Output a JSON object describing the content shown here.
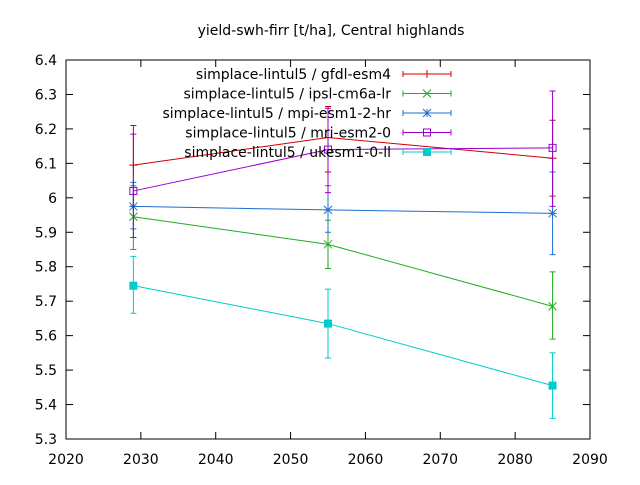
{
  "chart_data": {
    "type": "line",
    "title": "yield-swh-firr [t/ha], Central highlands",
    "xlabel": "",
    "ylabel": "",
    "xlim": [
      2020,
      2090
    ],
    "ylim": [
      5.3,
      6.4
    ],
    "x_ticks": [
      2020,
      2030,
      2040,
      2050,
      2060,
      2070,
      2080,
      2090
    ],
    "y_ticks": [
      5.3,
      5.4,
      5.5,
      5.6,
      5.7,
      5.8,
      5.9,
      6.0,
      6.1,
      6.2,
      6.3,
      6.4
    ],
    "x_tick_labels": [
      "2020",
      "2030",
      "2040",
      "2050",
      "2060",
      "2070",
      "2080",
      "2090"
    ],
    "y_tick_labels": [
      "5.3",
      "5.4",
      "5.5",
      "5.6",
      "5.7",
      "5.8",
      "5.9",
      "6",
      "6.1",
      "6.2",
      "6.3",
      "6.4"
    ],
    "grid": false,
    "legend_position": "top-right",
    "x": [
      2029,
      2055,
      2085
    ],
    "series": [
      {
        "name": "simplace-lintul5 / gfdl-esm4",
        "color": "#cc0000",
        "marker": "plus",
        "values": [
          6.095,
          6.175,
          6.115
        ],
        "err_low": [
          5.975,
          6.075,
          6.005
        ],
        "err_high": [
          6.21,
          6.265,
          6.225
        ]
      },
      {
        "name": "simplace-lintul5 / ipsl-cm6a-lr",
        "color": "#22aa22",
        "marker": "x",
        "values": [
          5.945,
          5.865,
          5.685
        ],
        "err_low": [
          5.85,
          5.795,
          5.59
        ],
        "err_high": [
          6.035,
          5.935,
          5.785
        ]
      },
      {
        "name": "simplace-lintul5 / mpi-esm1-2-hr",
        "color": "#1e6fd0",
        "marker": "star",
        "values": [
          5.975,
          5.965,
          5.955
        ],
        "err_low": [
          5.91,
          5.9,
          5.835
        ],
        "err_high": [
          6.045,
          6.035,
          6.075
        ]
      },
      {
        "name": "simplace-lintul5 / mri-esm2-0",
        "color": "#9900cc",
        "marker": "square-open",
        "values": [
          6.02,
          6.14,
          6.145
        ],
        "err_low": [
          5.885,
          6.015,
          5.975
        ],
        "err_high": [
          6.185,
          6.26,
          6.31
        ]
      },
      {
        "name": "simplace-lintul5 / ukesm1-0-ll",
        "color": "#00cccc",
        "marker": "square-filled",
        "values": [
          5.745,
          5.635,
          5.455
        ],
        "err_low": [
          5.665,
          5.535,
          5.36
        ],
        "err_high": [
          5.83,
          5.735,
          5.55
        ]
      }
    ]
  }
}
